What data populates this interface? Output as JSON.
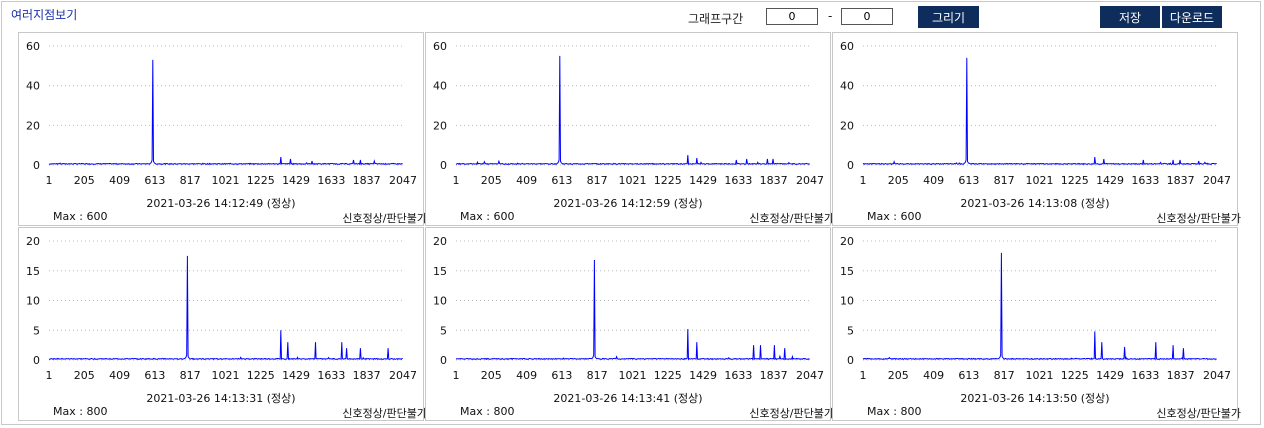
{
  "page_title": "여러지점보기",
  "controls": {
    "range_label": "그래프구간",
    "range_start": "0",
    "range_end": "0",
    "separator": "-",
    "draw_label": "그리기",
    "save_label": "저장",
    "download_label": "다운로드"
  },
  "colors": {
    "line": "#0000ff",
    "button": "#0f2d5c",
    "title": "#1a2fb0"
  },
  "chart_data": [
    {
      "type": "line",
      "timestamp": "2021-03-26 14:12:49 (정상)",
      "max_label": "Max : 600",
      "status": "신호정상/판단불가",
      "ylim": [
        0,
        60
      ],
      "yticks": [
        0,
        20,
        40,
        60
      ],
      "xlim": [
        1,
        2047
      ],
      "xticks": [
        1,
        205,
        409,
        613,
        817,
        1021,
        1225,
        1429,
        1633,
        1837,
        2047
      ],
      "grid": true,
      "peaks": [
        [
          600,
          53
        ],
        [
          1340,
          4
        ],
        [
          1395,
          3
        ],
        [
          1520,
          2
        ],
        [
          1760,
          2.5
        ],
        [
          1800,
          2.5
        ],
        [
          1880,
          2
        ]
      ]
    },
    {
      "type": "line",
      "timestamp": "2021-03-26 14:12:59 (정상)",
      "max_label": "Max : 600",
      "status": "신호정상/판단불가",
      "ylim": [
        0,
        60
      ],
      "yticks": [
        0,
        20,
        40,
        60
      ],
      "xlim": [
        1,
        2047
      ],
      "xticks": [
        1,
        205,
        409,
        613,
        817,
        1021,
        1225,
        1429,
        1633,
        1837,
        2047
      ],
      "grid": true,
      "peaks": [
        [
          600,
          55
        ],
        [
          1340,
          5
        ],
        [
          1390,
          3.5
        ],
        [
          1620,
          2.5
        ],
        [
          1680,
          3
        ],
        [
          1800,
          3
        ],
        [
          1830,
          3
        ]
      ]
    },
    {
      "type": "line",
      "timestamp": "2021-03-26 14:13:08 (정상)",
      "max_label": "Max : 600",
      "status": "신호정상/판단불가",
      "ylim": [
        0,
        60
      ],
      "yticks": [
        0,
        20,
        40,
        60
      ],
      "xlim": [
        1,
        2047
      ],
      "xticks": [
        1,
        205,
        409,
        613,
        817,
        1021,
        1225,
        1429,
        1633,
        1837,
        2047
      ],
      "grid": true,
      "peaks": [
        [
          600,
          54
        ],
        [
          1340,
          4
        ],
        [
          1390,
          3
        ],
        [
          1620,
          2.5
        ],
        [
          1790,
          2.5
        ],
        [
          1830,
          2.5
        ],
        [
          1940,
          2
        ]
      ]
    },
    {
      "type": "line",
      "timestamp": "2021-03-26 14:13:31 (정상)",
      "max_label": "Max : 800",
      "status": "신호정상/판단불가",
      "ylim": [
        0,
        20
      ],
      "yticks": [
        0,
        5,
        10,
        15,
        20
      ],
      "xlim": [
        1,
        2047
      ],
      "xticks": [
        1,
        205,
        409,
        613,
        817,
        1021,
        1225,
        1429,
        1633,
        1837,
        2047
      ],
      "grid": true,
      "peaks": [
        [
          800,
          17.5
        ],
        [
          1340,
          5
        ],
        [
          1380,
          3
        ],
        [
          1540,
          3
        ],
        [
          1690,
          3
        ],
        [
          1720,
          2
        ],
        [
          1800,
          2
        ],
        [
          1960,
          2
        ]
      ]
    },
    {
      "type": "line",
      "timestamp": "2021-03-26 14:13:41 (정상)",
      "max_label": "Max : 800",
      "status": "신호정상/판단불가",
      "ylim": [
        0,
        20
      ],
      "yticks": [
        0,
        5,
        10,
        15,
        20
      ],
      "xlim": [
        1,
        2047
      ],
      "xticks": [
        1,
        205,
        409,
        613,
        817,
        1021,
        1225,
        1429,
        1633,
        1837,
        2047
      ],
      "grid": true,
      "peaks": [
        [
          800,
          16.8
        ],
        [
          1340,
          5.2
        ],
        [
          1390,
          3
        ],
        [
          1720,
          2.5
        ],
        [
          1760,
          2.5
        ],
        [
          1840,
          2.5
        ],
        [
          1900,
          2
        ]
      ]
    },
    {
      "type": "line",
      "timestamp": "2021-03-26 14:13:50 (정상)",
      "max_label": "Max : 800",
      "status": "신호정상/판단불가",
      "ylim": [
        0,
        20
      ],
      "yticks": [
        0,
        5,
        10,
        15,
        20
      ],
      "xlim": [
        1,
        2047
      ],
      "xticks": [
        1,
        205,
        409,
        613,
        817,
        1021,
        1225,
        1429,
        1633,
        1837,
        2047
      ],
      "grid": true,
      "peaks": [
        [
          800,
          18
        ],
        [
          1340,
          4.8
        ],
        [
          1380,
          3
        ],
        [
          1510,
          2.2
        ],
        [
          1690,
          3
        ],
        [
          1790,
          2.5
        ],
        [
          1850,
          2
        ]
      ]
    }
  ]
}
